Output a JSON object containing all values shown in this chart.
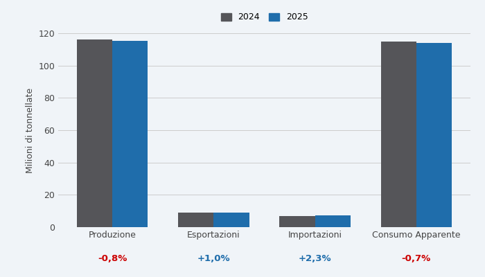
{
  "categories": [
    "Produzione",
    "Esportazioni",
    "Importazioni",
    "Consumo Apparente"
  ],
  "values_2024": [
    116.0,
    9.0,
    7.0,
    115.0
  ],
  "values_2025": [
    115.1,
    9.1,
    7.2,
    114.2
  ],
  "color_2024": "#555559",
  "color_2025": "#1F6DAB",
  "ylabel": "Milioni di tonnellate",
  "ylim": [
    0,
    120
  ],
  "yticks": [
    0,
    20,
    40,
    60,
    80,
    100,
    120
  ],
  "legend_labels": [
    "2024",
    "2025"
  ],
  "pct_changes": [
    "-0,8%",
    "+1,0%",
    "+2,3%",
    "-0,7%"
  ],
  "pct_colors": [
    "#cc0000",
    "#1F6DAB",
    "#1F6DAB",
    "#cc0000"
  ],
  "bar_width": 0.35,
  "background_color": "#f0f4f8",
  "grid_color": "#cccccc",
  "figsize": [
    7.0,
    4.0
  ],
  "dpi": 100
}
